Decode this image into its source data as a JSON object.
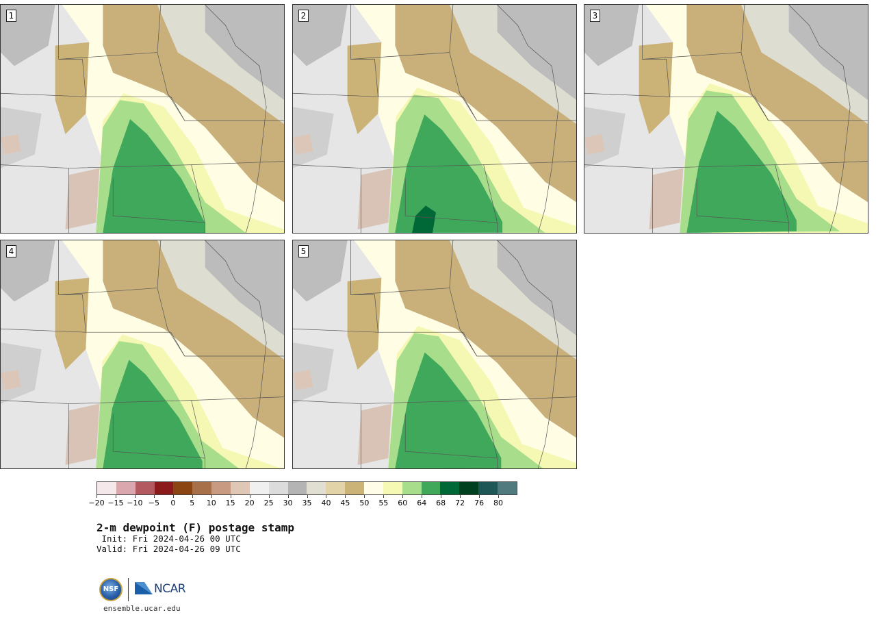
{
  "panels": [
    {
      "number": "1"
    },
    {
      "number": "2"
    },
    {
      "number": "3"
    },
    {
      "number": "4"
    },
    {
      "number": "5"
    }
  ],
  "colorbar": {
    "colors": [
      "#f5e8ea",
      "#d9a7ad",
      "#b35a60",
      "#8b1a1a",
      "#8b4513",
      "#a87049",
      "#c89a82",
      "#e0c6b4",
      "#f0f0f0",
      "#dcdcdc",
      "#b4b4b4",
      "#e0dfd2",
      "#e3d3a9",
      "#cbb276",
      "#fffde8",
      "#f6f9b4",
      "#a8dd8c",
      "#3fa85a",
      "#006837",
      "#00401e",
      "#1f5656",
      "#507a7e"
    ],
    "tick_labels": [
      "−20",
      "−15",
      "−10",
      "−5",
      "0",
      "5",
      "10",
      "15",
      "20",
      "25",
      "30",
      "35",
      "40",
      "45",
      "50",
      "55",
      "60",
      "64",
      "68",
      "72",
      "76",
      "80"
    ]
  },
  "title": "2-m dewpoint (F) postage stamp",
  "init": " Init: Fri 2024-04-26 00 UTC",
  "valid": "Valid: Fri 2024-04-26 09 UTC",
  "logos": {
    "nsf": "NSF",
    "ncar": "NCAR"
  },
  "url": "ensemble.ucar.edu"
}
